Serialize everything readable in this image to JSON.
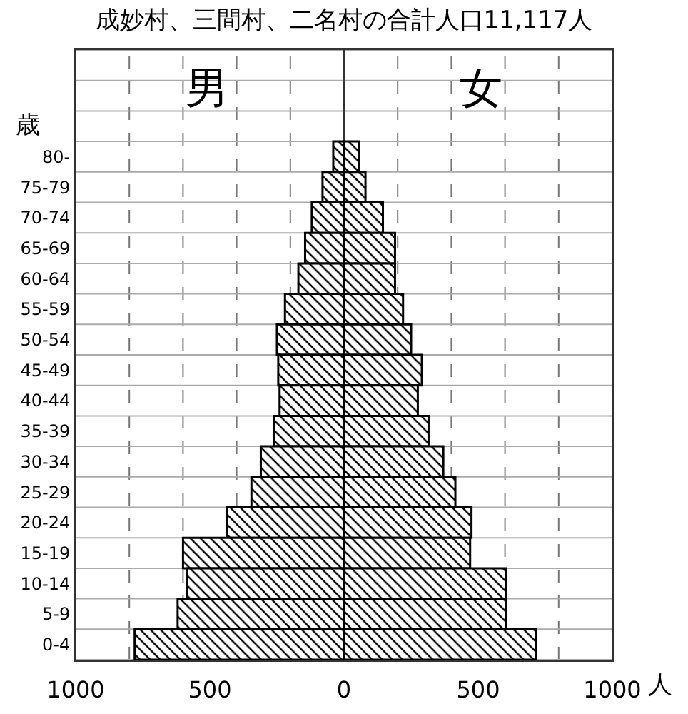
{
  "chart_data": {
    "type": "bar",
    "orientation": "horizontal",
    "title": "成妙村、三間村、二名村の合計人口11,117人",
    "ylabel": "歳",
    "xlabel": "人",
    "categories": [
      "80-",
      "75-79",
      "70-74",
      "65-69",
      "60-64",
      "55-59",
      "50-54",
      "45-49",
      "40-44",
      "35-39",
      "30-34",
      "25-29",
      "20-24",
      "15-19",
      "10-14",
      "5-9",
      "0-4"
    ],
    "series": [
      {
        "name": "男",
        "color": "#000000",
        "values": [
          -40,
          -80,
          -120,
          -145,
          -170,
          -220,
          -250,
          -245,
          -240,
          -260,
          -310,
          -345,
          -435,
          -600,
          -585,
          -620,
          -780
        ]
      },
      {
        "name": "女",
        "color": "#000000",
        "values": [
          55,
          80,
          145,
          190,
          190,
          220,
          250,
          290,
          275,
          315,
          370,
          415,
          475,
          470,
          605,
          605,
          715
        ]
      }
    ],
    "xlim": [
      -1000,
      1000
    ],
    "xticks": [
      {
        "value": -1000,
        "label": "1000"
      },
      {
        "value": -800,
        "label": null
      },
      {
        "value": -600,
        "label": null
      },
      {
        "value": -500,
        "label": "500"
      },
      {
        "value": -400,
        "label": null
      },
      {
        "value": -200,
        "label": null
      },
      0,
      {
        "value": 200,
        "label": null
      },
      {
        "value": 400,
        "label": null
      },
      {
        "value": 500,
        "label": "500"
      },
      {
        "value": 600,
        "label": null
      },
      {
        "value": 800,
        "label": null
      },
      1000
    ],
    "stacked": true,
    "grid": true
  }
}
